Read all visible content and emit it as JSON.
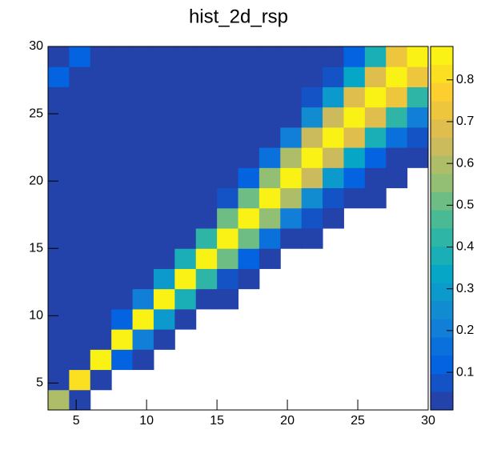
{
  "chart_data": {
    "type": "heatmap",
    "title": "hist_2d_rsp",
    "x_bins": [
      3,
      4.5,
      6,
      7.5,
      9,
      10.5,
      12,
      13.5,
      15,
      16.5,
      18,
      19.5,
      21,
      22.5,
      24,
      25.5,
      27,
      28.5,
      30
    ],
    "y_bins": [
      3,
      4.5,
      6,
      7.5,
      9,
      10.5,
      12,
      13.5,
      15,
      16.5,
      18,
      19.5,
      21,
      22.5,
      24,
      25.5,
      27,
      28.5,
      30
    ],
    "z": [
      [
        0.6,
        0.01,
        null,
        null,
        null,
        null,
        null,
        null,
        null,
        null,
        null,
        null,
        null,
        null,
        null,
        null,
        null,
        null
      ],
      [
        0.01,
        0.8,
        0.04,
        null,
        null,
        null,
        null,
        null,
        null,
        null,
        null,
        null,
        null,
        null,
        null,
        null,
        null,
        null
      ],
      [
        0.01,
        0.01,
        0.85,
        0.11,
        0.01,
        null,
        null,
        null,
        null,
        null,
        null,
        null,
        null,
        null,
        null,
        null,
        null,
        null
      ],
      [
        0.01,
        0.01,
        0.04,
        0.85,
        0.2,
        0.01,
        null,
        null,
        null,
        null,
        null,
        null,
        null,
        null,
        null,
        null,
        null,
        null
      ],
      [
        0.01,
        0.01,
        0.01,
        0.11,
        0.85,
        0.28,
        0.03,
        null,
        null,
        null,
        null,
        null,
        null,
        null,
        null,
        null,
        null,
        null
      ],
      [
        0.01,
        0.01,
        0.01,
        0.01,
        0.2,
        0.85,
        0.36,
        0.05,
        0.01,
        null,
        null,
        null,
        null,
        null,
        null,
        null,
        null,
        null
      ],
      [
        0.01,
        0.01,
        0.01,
        0.01,
        0.01,
        0.28,
        0.85,
        0.43,
        0.09,
        0.01,
        null,
        null,
        null,
        null,
        null,
        null,
        null,
        null
      ],
      [
        0.01,
        0.01,
        0.01,
        0.01,
        0.01,
        0.01,
        0.36,
        0.85,
        0.49,
        0.13,
        0.02,
        null,
        null,
        null,
        null,
        null,
        null,
        null
      ],
      [
        0.01,
        0.01,
        0.01,
        0.01,
        0.01,
        0.01,
        0.03,
        0.43,
        0.85,
        0.53,
        0.17,
        0.04,
        0.01,
        null,
        null,
        null,
        null,
        null
      ],
      [
        0.01,
        0.01,
        0.01,
        0.01,
        0.01,
        0.01,
        0.01,
        0.05,
        0.49,
        0.85,
        0.57,
        0.22,
        0.06,
        0.01,
        null,
        null,
        null,
        null
      ],
      [
        0.01,
        0.01,
        0.01,
        0.01,
        0.01,
        0.01,
        0.01,
        0.01,
        0.09,
        0.53,
        0.85,
        0.6,
        0.27,
        0.08,
        0.02,
        0.01,
        null,
        null
      ],
      [
        0.01,
        0.01,
        0.01,
        0.01,
        0.01,
        0.01,
        0.01,
        0.01,
        0.01,
        0.13,
        0.57,
        0.85,
        0.63,
        0.3,
        0.11,
        0.03,
        0.01,
        null
      ],
      [
        0.01,
        0.01,
        0.01,
        0.01,
        0.01,
        0.01,
        0.01,
        0.01,
        0.01,
        0.01,
        0.17,
        0.6,
        0.85,
        0.66,
        0.35,
        0.14,
        0.05,
        0.01
      ],
      [
        0.01,
        0.01,
        0.01,
        0.01,
        0.01,
        0.01,
        0.01,
        0.01,
        0.01,
        0.01,
        0.02,
        0.22,
        0.63,
        0.85,
        0.68,
        0.37,
        0.17,
        0.06
      ],
      [
        0.01,
        0.01,
        0.01,
        0.01,
        0.01,
        0.01,
        0.01,
        0.01,
        0.01,
        0.01,
        0.01,
        0.04,
        0.27,
        0.66,
        0.85,
        0.69,
        0.41,
        0.2
      ],
      [
        0.01,
        0.01,
        0.01,
        0.01,
        0.01,
        0.01,
        0.01,
        0.01,
        0.01,
        0.01,
        0.01,
        0.01,
        0.06,
        0.3,
        0.68,
        0.85,
        0.71,
        0.44
      ],
      [
        0.12,
        0.01,
        0.01,
        0.01,
        0.01,
        0.01,
        0.01,
        0.01,
        0.01,
        0.01,
        0.01,
        0.01,
        0.01,
        0.08,
        0.35,
        0.69,
        0.85,
        0.72
      ],
      [
        0.01,
        0.12,
        0.01,
        0.01,
        0.01,
        0.01,
        0.01,
        0.01,
        0.01,
        0.01,
        0.01,
        0.01,
        0.01,
        0.01,
        0.11,
        0.37,
        0.71,
        0.85
      ]
    ],
    "xlim": [
      3,
      30
    ],
    "xticks": [
      5,
      10,
      15,
      20,
      25,
      30
    ],
    "ylim": [
      3,
      30
    ],
    "yticks": [
      5,
      10,
      15,
      20,
      25,
      30
    ],
    "zlim": [
      0.01,
      0.88
    ],
    "zticks": [
      0.1,
      0.2,
      0.3,
      0.4,
      0.5,
      0.6,
      0.7,
      0.8
    ],
    "colorscale": [
      "#2b3a9c",
      "#0363e1",
      "#1485d4",
      "#06a7c6",
      "#38b99e",
      "#92bf73",
      "#d9ba56",
      "#fcce2e",
      "#f9fb0e"
    ],
    "levels": 20
  }
}
